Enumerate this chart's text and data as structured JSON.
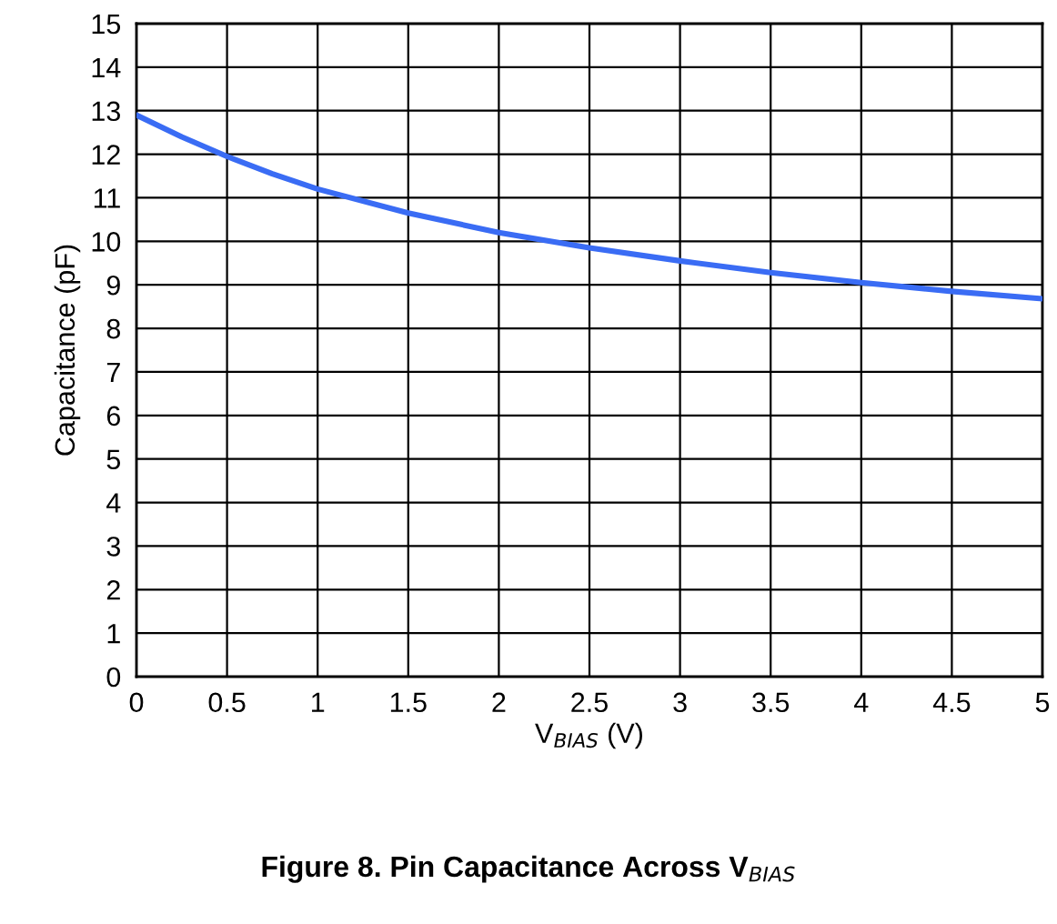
{
  "chart_data": {
    "type": "line",
    "title": "Figure 8. Pin Capacitance Across V$_{BIAS}$",
    "xlabel": "V$_{BIAS}$ (V)",
    "ylabel": "Capacitance (pF)",
    "x": [
      0,
      0.25,
      0.5,
      0.75,
      1,
      1.5,
      2,
      2.5,
      3,
      3.5,
      4,
      4.5,
      5
    ],
    "series": [
      {
        "color": "#3a6cf4",
        "values": [
          12.9,
          12.4,
          11.95,
          11.55,
          11.2,
          10.65,
          10.2,
          9.85,
          9.55,
          9.28,
          9.05,
          8.85,
          8.68
        ]
      }
    ],
    "xlim": [
      0,
      5
    ],
    "xticks": [
      0,
      0.5,
      1,
      1.5,
      2,
      2.5,
      3,
      3.5,
      4,
      4.5,
      5
    ],
    "ylim": [
      0,
      15
    ],
    "yticks": [
      0,
      1,
      2,
      3,
      4,
      5,
      6,
      7,
      8,
      9,
      10,
      11,
      12,
      13,
      14,
      15
    ],
    "grid": true,
    "legend": false,
    "marker": "none",
    "line_style": "solid"
  }
}
